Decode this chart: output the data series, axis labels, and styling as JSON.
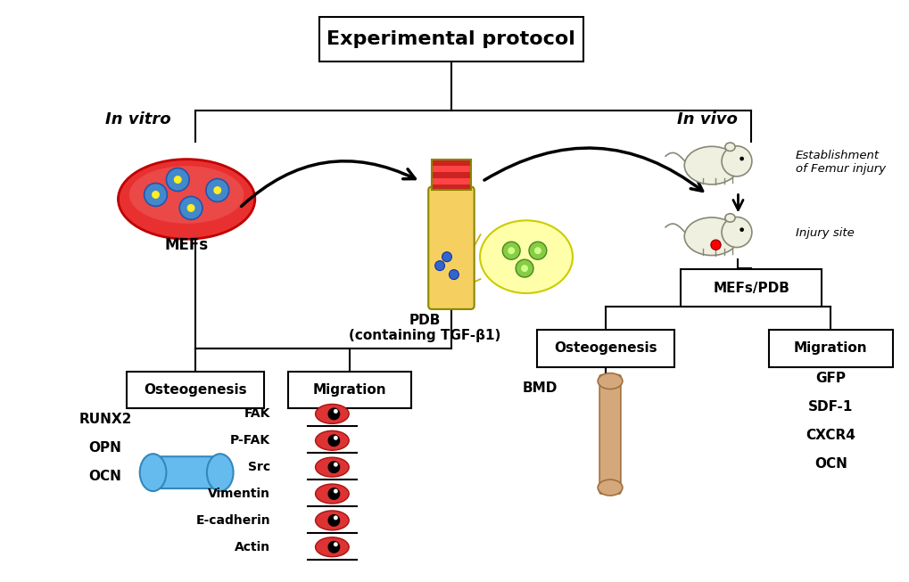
{
  "title": "Experimental protocol",
  "background_color": "#ffffff",
  "title_fontsize": 16,
  "label_fontsize": 12,
  "small_fontsize": 11,
  "invitro_label": "In vitro",
  "invivo_label": "In vivo",
  "mefs_label": "MEFs",
  "pdb_label": "PDB\n(containing TGF-β1)",
  "mefs_pdb_label": "MEFs/PDB",
  "osteogenesis_label": "Osteogenesis",
  "migration_label": "Migration",
  "bmd_label": "BMD",
  "osteo_markers_left": [
    "RUNX2",
    "OPN",
    "OCN"
  ],
  "migration_markers_left": [
    "FAK",
    "P-FAK",
    "Src",
    "Vimentin",
    "E-cadherin",
    "Actin"
  ],
  "migration_markers_right": [
    "GFP",
    "SDF-1",
    "CXCR4",
    "OCN"
  ],
  "establishment_label": "Establishment\nof Femur injury",
  "injury_label": "Injury site"
}
